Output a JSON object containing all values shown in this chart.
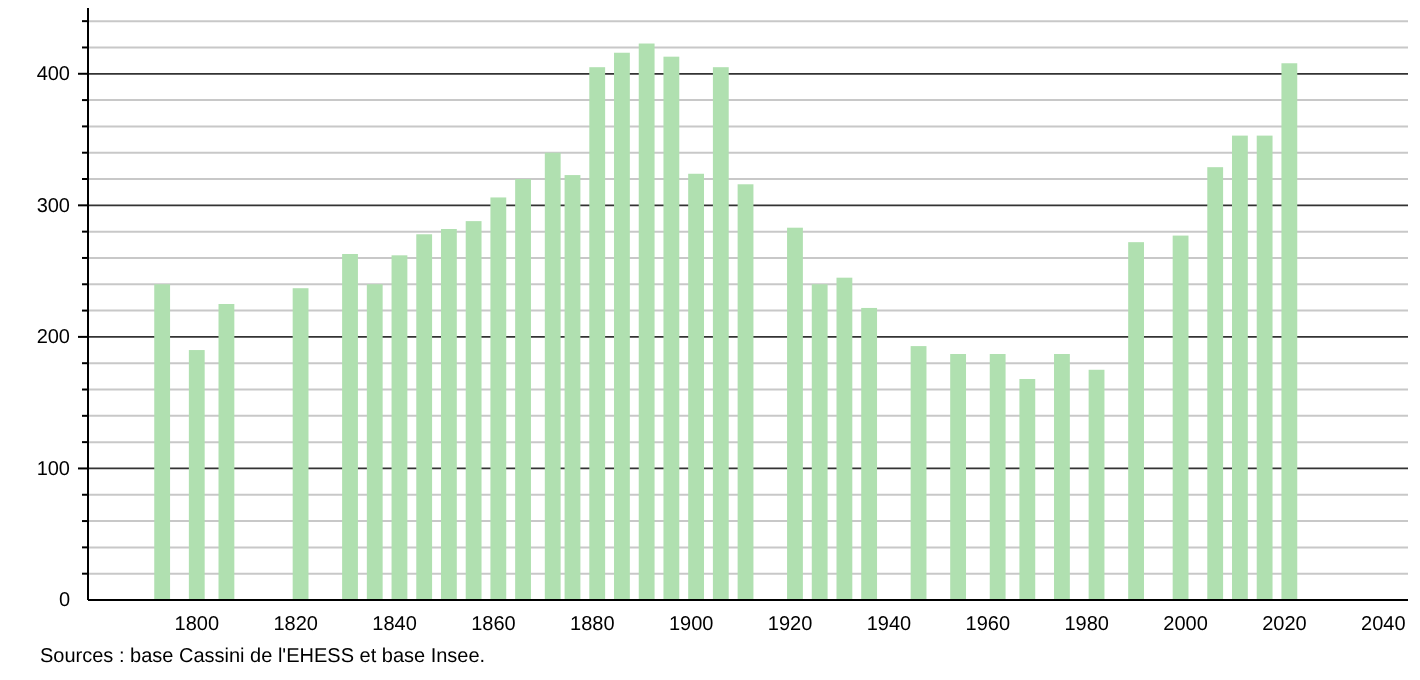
{
  "chart_data": {
    "type": "bar",
    "x": [
      1793,
      1800,
      1806,
      1821,
      1831,
      1836,
      1841,
      1846,
      1851,
      1856,
      1861,
      1866,
      1872,
      1876,
      1881,
      1886,
      1891,
      1896,
      1901,
      1906,
      1911,
      1921,
      1926,
      1931,
      1936,
      1946,
      1954,
      1962,
      1968,
      1975,
      1982,
      1990,
      1999,
      2006,
      2011,
      2016,
      2021
    ],
    "values": [
      240,
      190,
      225,
      237,
      263,
      240,
      262,
      278,
      282,
      288,
      306,
      320,
      340,
      323,
      405,
      416,
      423,
      413,
      324,
      405,
      316,
      283,
      240,
      245,
      222,
      193,
      187,
      187,
      168,
      187,
      175,
      272,
      277,
      329,
      353,
      353,
      408
    ],
    "color": "#b0e0b0",
    "xlim": [
      1778,
      2045
    ],
    "xticks": [
      1800,
      1820,
      1840,
      1860,
      1880,
      1900,
      1920,
      1940,
      1960,
      1980,
      2000,
      2020,
      2040
    ],
    "ylim": [
      0,
      450
    ],
    "yticks": [
      0,
      {
        "value": 20,
        "label": null
      },
      {
        "value": 40,
        "label": null
      },
      {
        "value": 60,
        "label": null
      },
      {
        "value": 80,
        "label": null
      },
      100,
      {
        "value": 120,
        "label": null
      },
      {
        "value": 140,
        "label": null
      },
      {
        "value": 160,
        "label": null
      },
      {
        "value": 180,
        "label": null
      },
      200,
      {
        "value": 220,
        "label": null
      },
      {
        "value": 240,
        "label": null
      },
      {
        "value": 260,
        "label": null
      },
      {
        "value": 280,
        "label": null
      },
      300,
      {
        "value": 320,
        "label": null
      },
      {
        "value": 340,
        "label": null
      },
      {
        "value": 360,
        "label": null
      },
      {
        "value": 380,
        "label": null
      },
      400,
      {
        "value": 420,
        "label": null
      },
      {
        "value": 440,
        "label": null
      }
    ],
    "grid": "y",
    "annotations": [
      "Sources : base Cassini de l'EHESS et base Insee."
    ]
  }
}
